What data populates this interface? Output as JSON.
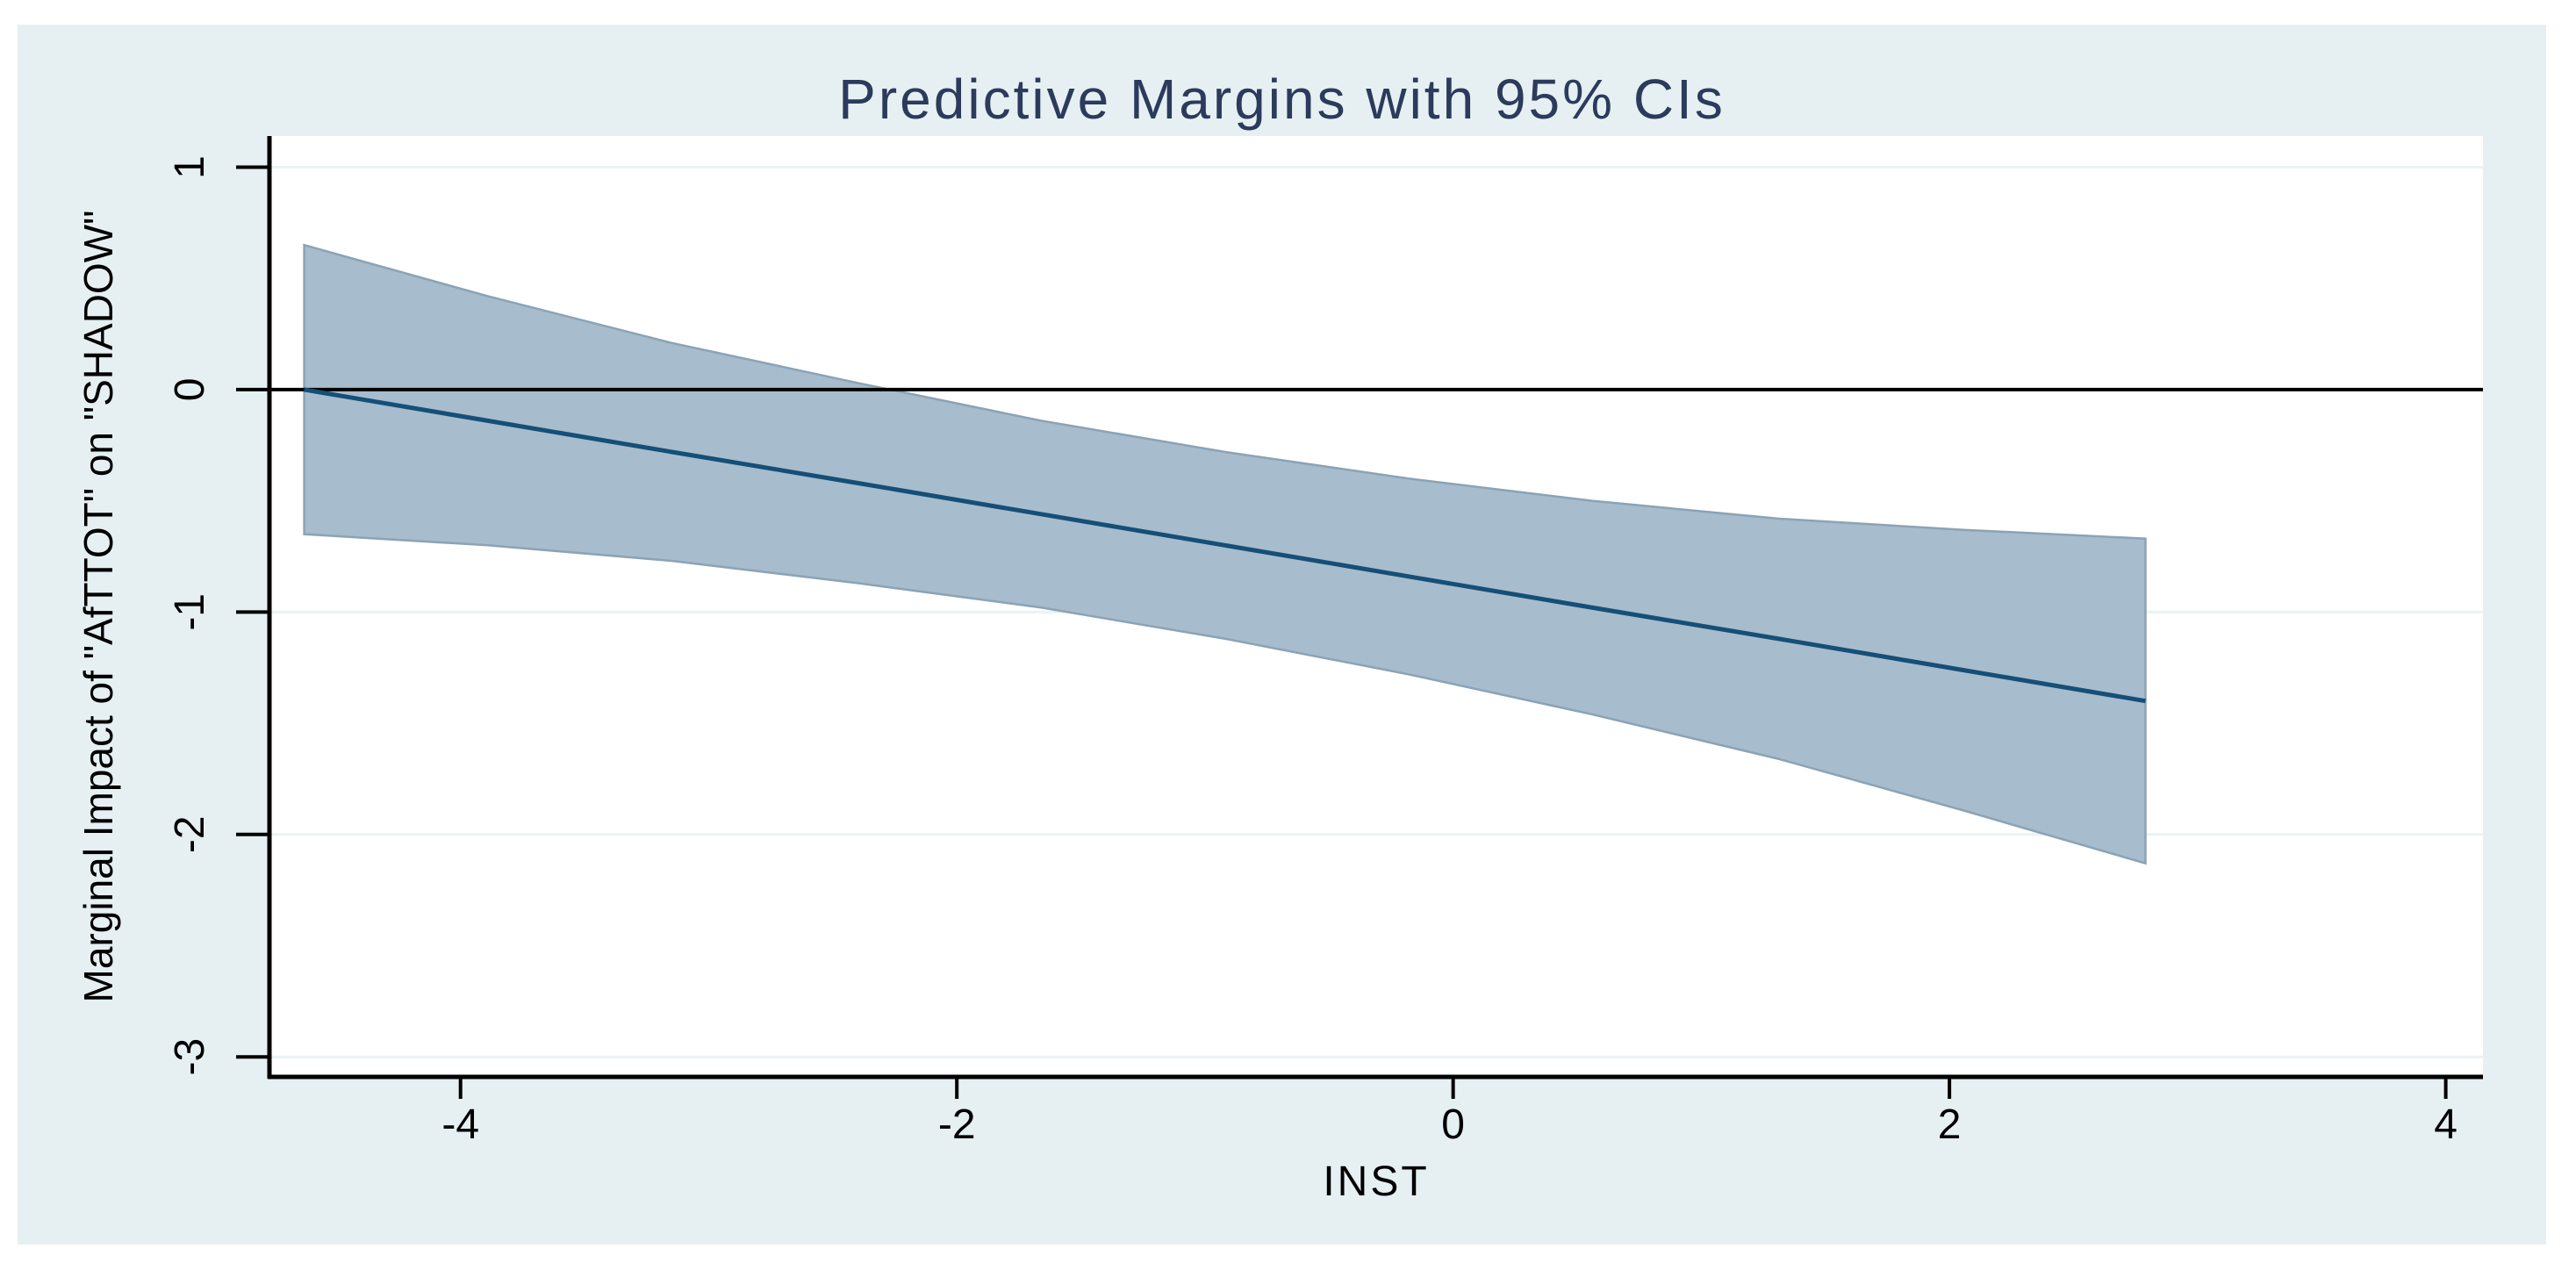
{
  "title": "Predictive Margins with 95% CIs",
  "chart_data": {
    "type": "area",
    "title": "Predictive Margins with 95% CIs",
    "xlabel": "INST",
    "ylabel": "Marginal Impact of \"AfTTOT\" on \"SHADOW\"",
    "x": [
      -4.63,
      -3.89,
      -3.15,
      -2.4,
      -1.66,
      -0.92,
      -0.18,
      0.56,
      1.31,
      2.05,
      2.79
    ],
    "series": [
      {
        "name": "predictive_margin",
        "values": [
          0.0,
          -0.14,
          -0.28,
          -0.42,
          -0.56,
          -0.7,
          -0.84,
          -0.98,
          -1.12,
          -1.26,
          -1.4
        ]
      },
      {
        "name": "ci_upper_95",
        "values": [
          0.65,
          0.42,
          0.21,
          0.03,
          -0.14,
          -0.28,
          -0.4,
          -0.5,
          -0.58,
          -0.63,
          -0.67
        ]
      },
      {
        "name": "ci_lower_95",
        "values": [
          -0.65,
          -0.7,
          -0.77,
          -0.87,
          -0.98,
          -1.12,
          -1.28,
          -1.46,
          -1.66,
          -1.89,
          -2.13
        ]
      }
    ],
    "x_ticks": [
      -4,
      -2,
      0,
      2,
      4
    ],
    "x_tick_labels": [
      "-4",
      "-2",
      "0",
      "2",
      "4"
    ],
    "y_ticks": [
      1,
      0,
      -1,
      -2,
      -3
    ],
    "y_tick_labels": [
      "1",
      "0",
      "-1",
      "-2",
      "-3"
    ],
    "xlim": [
      -4.77,
      4.15
    ],
    "ylim": [
      -3.09,
      1.14
    ],
    "zero_reference_line": 0,
    "grid": "horizontal gridlines at y = 1, -1, -2, -3; black reference line at y = 0",
    "legend": "none",
    "colors": {
      "canvas_background": "#e6f0f3",
      "plot_background": "#ffffff",
      "gridline": "#e9f4f3",
      "ci_band_fill": "#a7bccd",
      "ci_band_edge": "#8ba3b5",
      "margin_line": "#154f77",
      "axis_and_ticks": "#000000",
      "title_text": "#2c3a5c",
      "tick_text": "#000000"
    }
  }
}
